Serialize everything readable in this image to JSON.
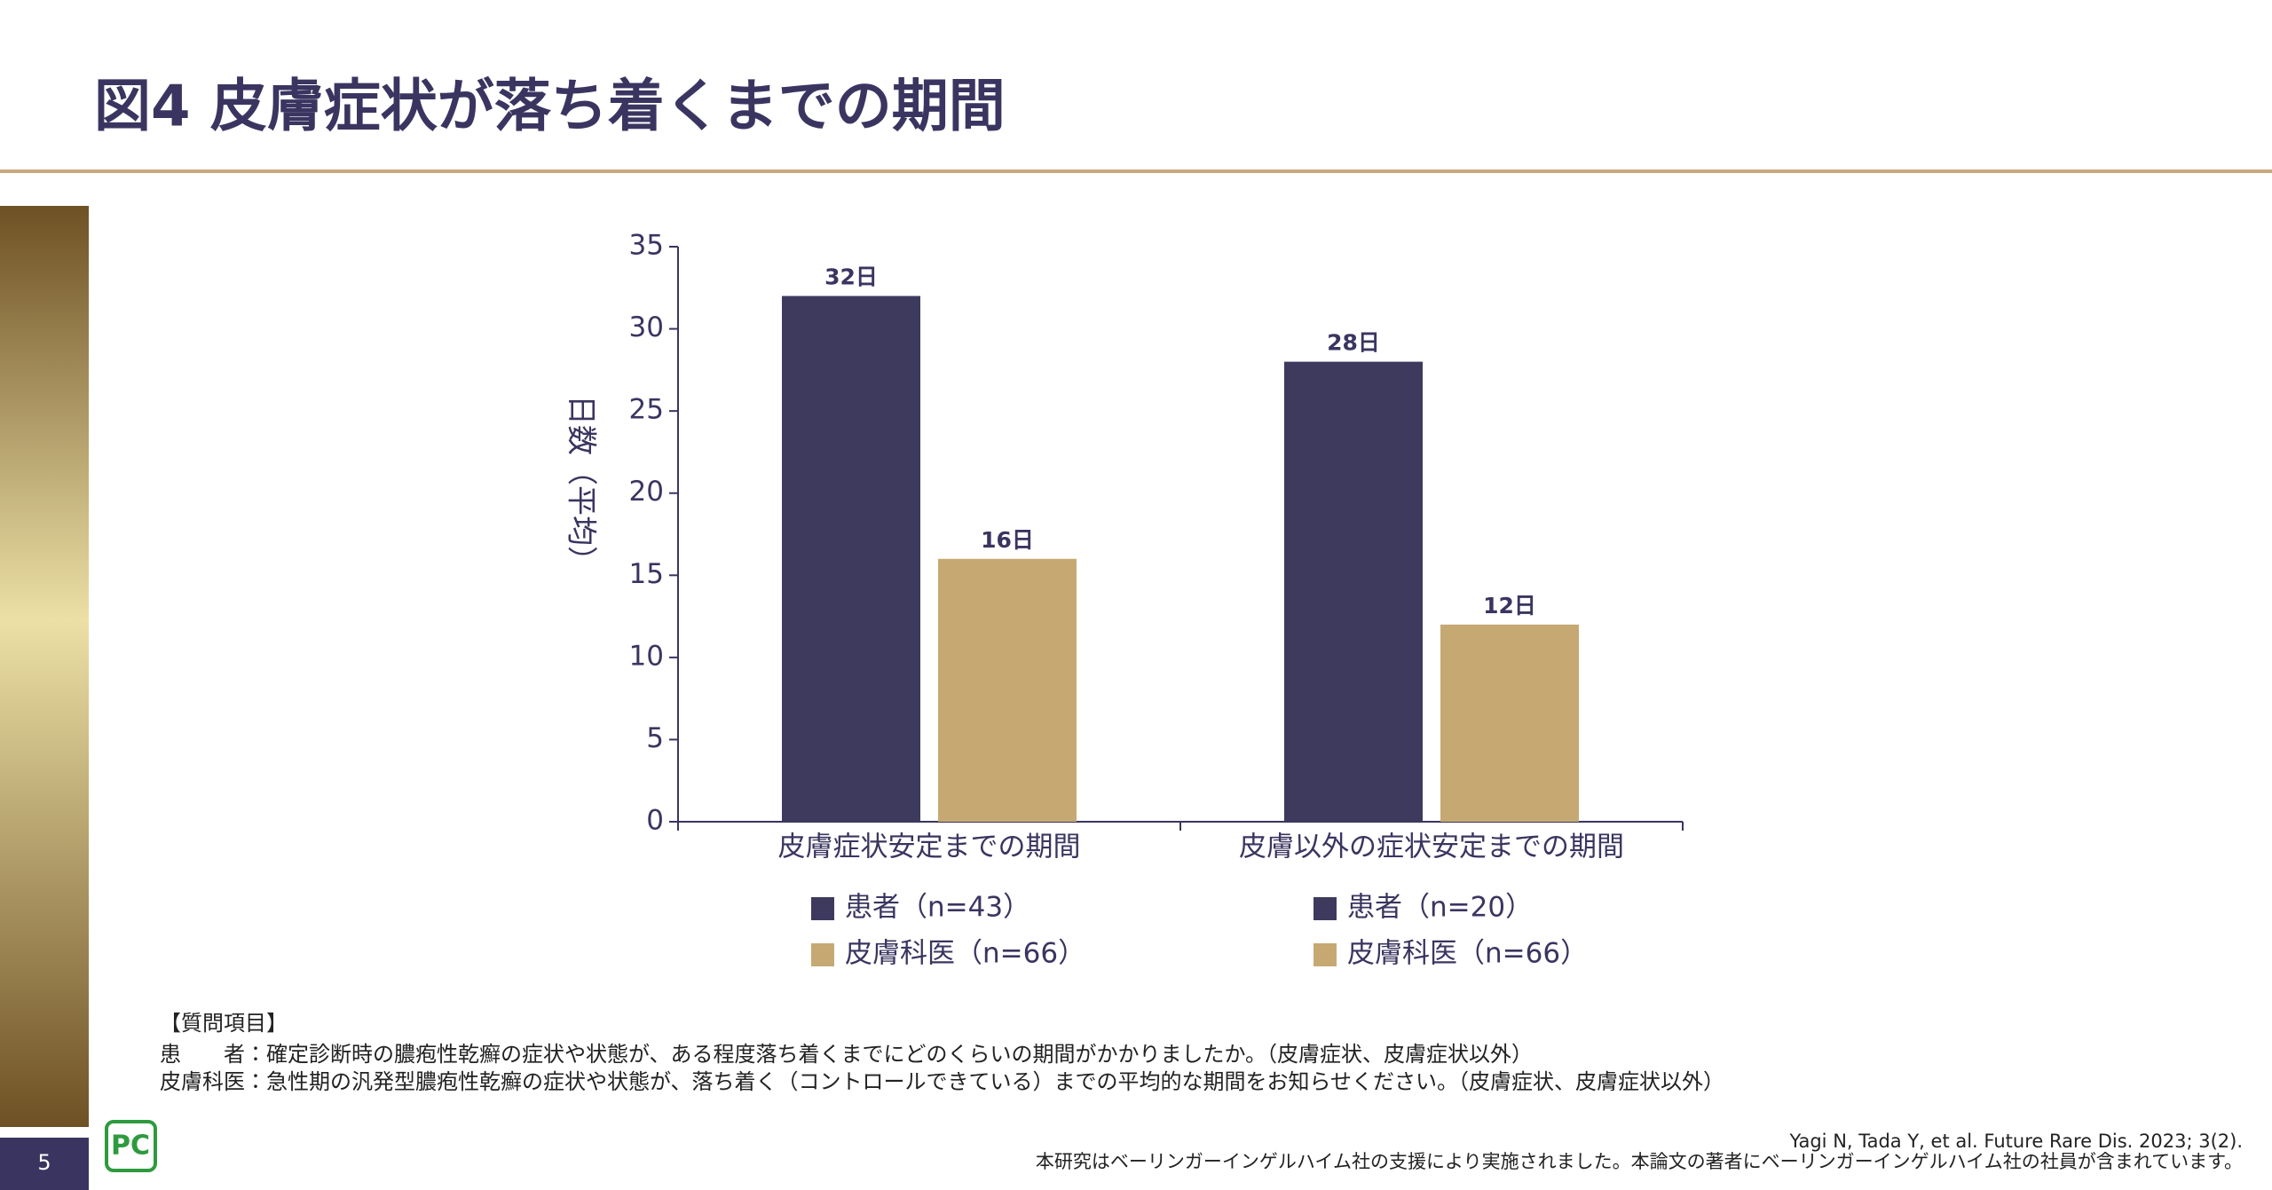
{
  "header": {
    "title": "図4 皮膚症状が落ち着くまでの期間"
  },
  "chart_data": {
    "type": "bar",
    "y_label": "日数（平均）",
    "categories": [
      "皮膚症状安定までの期間",
      "皮膚以外の症状安定までの期間"
    ],
    "series": [
      {
        "legend": [
          "患者（n=43）",
          "患者（n=20）"
        ],
        "color": "#3e3a5e",
        "values": [
          32,
          28
        ],
        "value_labels": [
          "32日",
          "28日"
        ]
      },
      {
        "legend": [
          "皮膚科医（n=66）",
          "皮膚科医（n=66）"
        ],
        "color": "#c6a972",
        "values": [
          16,
          12
        ],
        "value_labels": [
          "16日",
          "12日"
        ]
      }
    ],
    "ylim": [
      0,
      35
    ],
    "yticks": [
      0,
      5,
      10,
      15,
      20,
      25,
      30,
      35
    ]
  },
  "notes": [
    "【質問項目】",
    "患　　者：確定診断時の膿疱性乾癬の症状や状態が、ある程度落ち着くまでにどのくらいの期間がかかりましたか。（皮膚症状、皮膚症状以外）",
    "皮膚科医：急性期の汎発型膿疱性乾癬の症状や状態が、落ち着く（コントロールできている）までの平均的な期間をお知らせください。（皮膚症状、皮膚症状以外）"
  ],
  "footer": {
    "page": "5",
    "logo": "PC",
    "citation": "Yagi N, Tada Y, et al. Future Rare Dis. 2023; 3(2).",
    "disclosure": "本研究はベーリンガーインゲルハイム社の支援により実施されました。本論文の著者にベーリンガーインゲルハイム社の社員が含まれています。"
  }
}
